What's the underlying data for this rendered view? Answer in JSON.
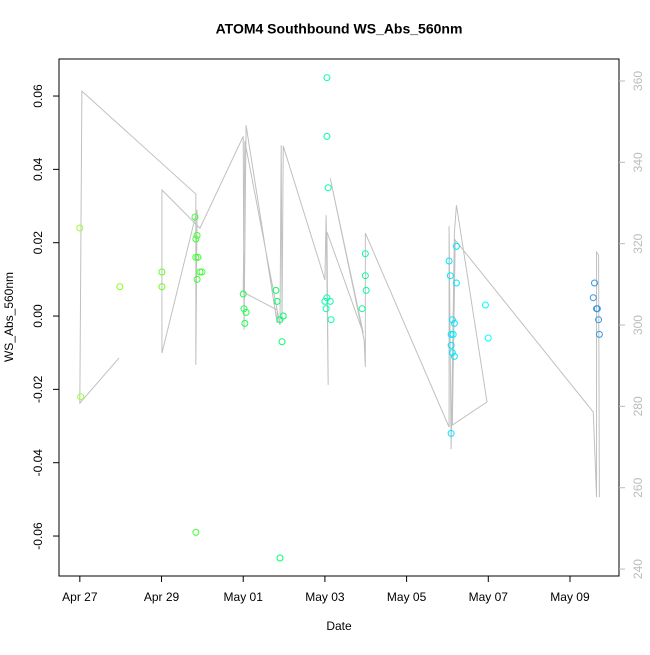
{
  "chart_data": {
    "type": "scatter",
    "title": "ATOM4 Southbound WS_Abs_560nm",
    "x_label": "Date",
    "y_label": "WS_Abs_560nm",
    "xlim": [
      -0.51,
      13.2
    ],
    "ylim": [
      -0.0709,
      0.0701
    ],
    "y2lim": [
      238.3,
      365.4
    ],
    "xticks": [
      {
        "value": 0,
        "label": "Apr 27"
      },
      {
        "value": 2,
        "label": "Apr 29"
      },
      {
        "value": 4,
        "label": "May 01"
      },
      {
        "value": 6,
        "label": "May 03"
      },
      {
        "value": 8,
        "label": "May 05"
      },
      {
        "value": 10,
        "label": "May 07"
      },
      {
        "value": 12,
        "label": "May 09"
      }
    ],
    "yticks": [
      -0.06,
      -0.04,
      -0.02,
      {
        "value": 0,
        "label": "0.00"
      },
      0.02,
      0.04,
      0.06
    ],
    "y2ticks": [
      240,
      260,
      280,
      300,
      320,
      340,
      360
    ],
    "y2_color": "#bbbbbb",
    "series": [
      {
        "type": "line",
        "axis": "y2",
        "color": "#c0c0c0",
        "x": [
          0.96,
          0,
          0.05,
          2.84,
          2.84,
          2.87,
          2.01,
          2.01,
          2.94,
          4.0,
          4.02,
          4.07,
          4.83,
          4.83,
          4.0,
          4.04,
          4.9,
          4.93,
          4.95,
          4.98,
          6.0,
          6.03,
          6.08,
          6.05,
          6.94,
          6.13,
          6.96,
          6.99,
          6.99,
          9.04,
          9.04,
          9.09,
          9.17,
          9.22,
          9.95,
          9.97,
          9.12,
          9.19,
          12.57,
          12.65,
          12.65,
          12.7,
          12.72
        ],
        "values": [
          291.9,
          280.8,
          357.5,
          332.2,
          290.2,
          328.3,
          293.1,
          333.2,
          323.8,
          346.4,
          298.8,
          349.1,
          300.5,
          303.7,
          308.1,
          345.2,
          300.0,
          344.2,
          300.7,
          344.0,
          311.1,
          327.0,
          285.3,
          322.9,
          298.0,
          336.1,
          296.3,
          289.7,
          322.6,
          274.9,
          324.3,
          269.5,
          322.6,
          329.5,
          282.3,
          281.1,
          275.4,
          320.9,
          278.6,
          257.7,
          317.9,
          317.2,
          257.7
        ]
      },
      {
        "type": "scatter",
        "color": "#99ff33",
        "x": [
          0,
          0.02
        ],
        "values": [
          0.024,
          -0.022
        ]
      },
      {
        "type": "scatter",
        "color": "#80ff1a",
        "x": [
          0.98
        ],
        "values": [
          0.008
        ]
      },
      {
        "type": "scatter",
        "color": "#66ff1a",
        "x": [
          2.01,
          2.01
        ],
        "values": [
          0.012,
          0.008
        ]
      },
      {
        "type": "scatter",
        "color": "#40ff33",
        "x": [
          2.82,
          2.84,
          2.87,
          2.84,
          2.89,
          2.87,
          2.94,
          2.99,
          2.84
        ],
        "values": [
          0.027,
          0.021,
          0.022,
          0.016,
          0.016,
          0.01,
          0.012,
          0.012,
          -0.059
        ]
      },
      {
        "type": "scatter",
        "color": "#1aff4d",
        "x": [
          4.0,
          4.02,
          4.07,
          4.04
        ],
        "values": [
          0.006,
          0.002,
          0.001,
          -0.002
        ]
      },
      {
        "type": "scatter",
        "color": "#00ff66",
        "x": [
          4.8,
          4.83,
          4.9,
          4.98,
          4.95,
          4.9
        ],
        "values": [
          0.007,
          0.004,
          -0.001,
          0.0,
          -0.007,
          -0.066
        ]
      },
      {
        "type": "scatter",
        "color": "#00ffaa",
        "x": [
          6.05,
          6.05,
          6.08,
          6.0,
          6.05,
          6.13,
          6.03,
          6.15
        ],
        "values": [
          0.065,
          0.049,
          0.035,
          0.004,
          0.005,
          0.004,
          0.002,
          -0.001
        ]
      },
      {
        "type": "scatter",
        "color": "#00ff99",
        "x": [
          6.99,
          6.99,
          7.01,
          6.91
        ],
        "values": [
          0.017,
          0.011,
          0.007,
          0.002
        ]
      },
      {
        "type": "scatter",
        "color": "#00e6ff",
        "x": [
          9.04,
          9.07,
          9.12,
          9.17,
          9.09,
          9.14,
          9.09,
          9.12,
          9.17,
          9.09,
          9.22,
          9.22
        ],
        "values": [
          0.015,
          0.011,
          -0.001,
          -0.002,
          -0.005,
          -0.005,
          -0.008,
          -0.01,
          -0.011,
          -0.032,
          0.019,
          0.009
        ]
      },
      {
        "type": "scatter",
        "color": "#00ffff",
        "x": [
          9.93,
          10.0
        ],
        "values": [
          0.003,
          -0.006
        ]
      },
      {
        "type": "scatter",
        "color": "#3399dd",
        "x": [
          12.6,
          12.57,
          12.65,
          12.67,
          12.7,
          12.72
        ],
        "values": [
          0.009,
          0.005,
          0.002,
          0.002,
          -0.001,
          -0.005
        ]
      }
    ]
  }
}
